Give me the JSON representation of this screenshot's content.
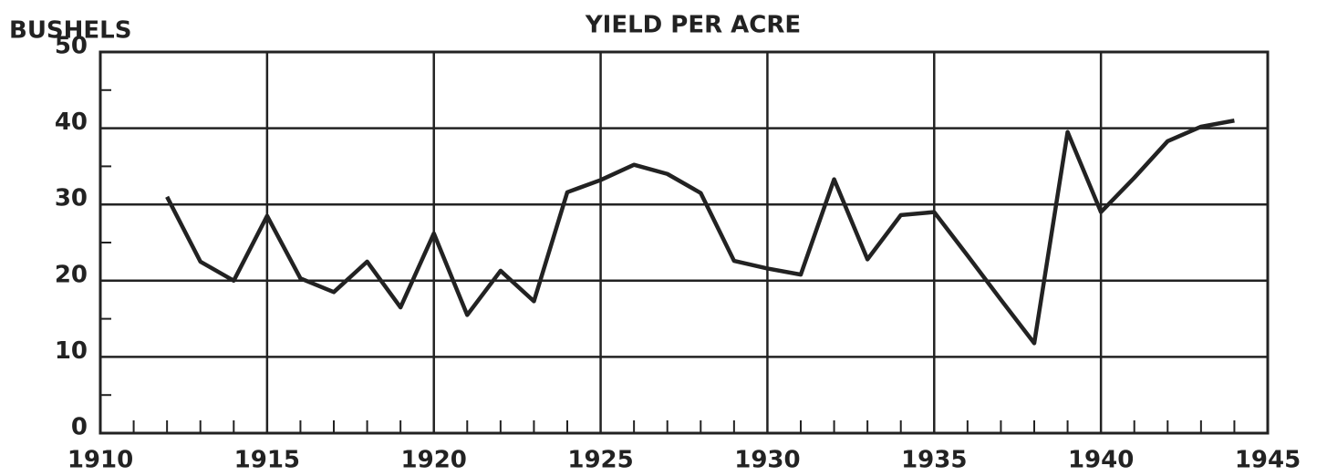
{
  "chart_data": {
    "type": "line",
    "title": "YIELD PER ACRE",
    "y_label": "BUSHELS",
    "x": [
      1912,
      1913,
      1914,
      1915,
      1916,
      1917,
      1918,
      1919,
      1920,
      1921,
      1922,
      1923,
      1924,
      1925,
      1926,
      1927,
      1928,
      1929,
      1930,
      1931,
      1932,
      1933,
      1934,
      1935,
      1936,
      1937,
      1938,
      1939,
      1940,
      1941,
      1942,
      1943,
      1944
    ],
    "series": [
      {
        "name": "Yield per acre",
        "color": "#222222",
        "values": [
          31,
          22.5,
          20,
          28.5,
          20.3,
          18.5,
          22.5,
          16.5,
          26.2,
          15.5,
          21.3,
          17.3,
          31.6,
          33.2,
          35.2,
          34,
          31.5,
          22.6,
          21.6,
          20.8,
          33.3,
          22.8,
          28.6,
          29,
          23.3,
          17.5,
          11.8,
          39.5,
          29,
          33.5,
          38.3,
          40.2,
          41
        ]
      }
    ],
    "xlim": [
      1910,
      1945
    ],
    "xticks": [
      1910,
      1915,
      1920,
      1925,
      1930,
      1935,
      1940,
      1945
    ],
    "ylim": [
      0,
      50
    ],
    "yticks": [
      0,
      10,
      20,
      30,
      40,
      50
    ],
    "grid": true
  }
}
